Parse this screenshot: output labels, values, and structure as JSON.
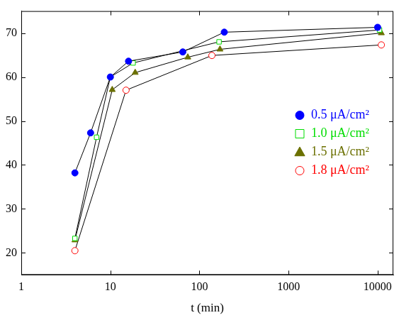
{
  "chart_data": {
    "type": "line",
    "x_label": "t (min)",
    "log": "x",
    "grid": false,
    "legend": "right",
    "xlim": [
      1,
      15000
    ],
    "xticks": [
      1,
      10,
      100,
      1000,
      10000
    ],
    "ylim": [
      15,
      75
    ],
    "yticks": [
      20,
      30,
      40,
      50,
      60,
      70
    ],
    "series": [
      {
        "name": "0.5 μA/cm²",
        "color": "#0000ff",
        "marker": "circle",
        "x": [
          4,
          6,
          10,
          16,
          65,
          190,
          10000
        ],
        "values": [
          38.2,
          47.3,
          60,
          63.6,
          65.7,
          70.2,
          71.3
        ]
      },
      {
        "name": "1.0 μA/cm²",
        "color": "#00dd00",
        "marker": "open_square",
        "x": [
          4,
          7,
          10,
          18,
          166,
          10500
        ],
        "values": [
          23.3,
          46.3,
          60,
          63.2,
          68,
          70.7
        ]
      },
      {
        "name": "1.5 μA/cm²",
        "color": "#6b7000",
        "marker": "triangle",
        "x": [
          4,
          10.5,
          19,
          74,
          170,
          11000
        ],
        "values": [
          22.9,
          57.1,
          61,
          64.5,
          66.3,
          70
        ]
      },
      {
        "name": "1.8 μA/cm²",
        "color": "#ff0000",
        "marker": "open_circle",
        "x": [
          4,
          15,
          138,
          11000
        ],
        "values": [
          20.5,
          57,
          64.9,
          67.3
        ]
      }
    ]
  }
}
